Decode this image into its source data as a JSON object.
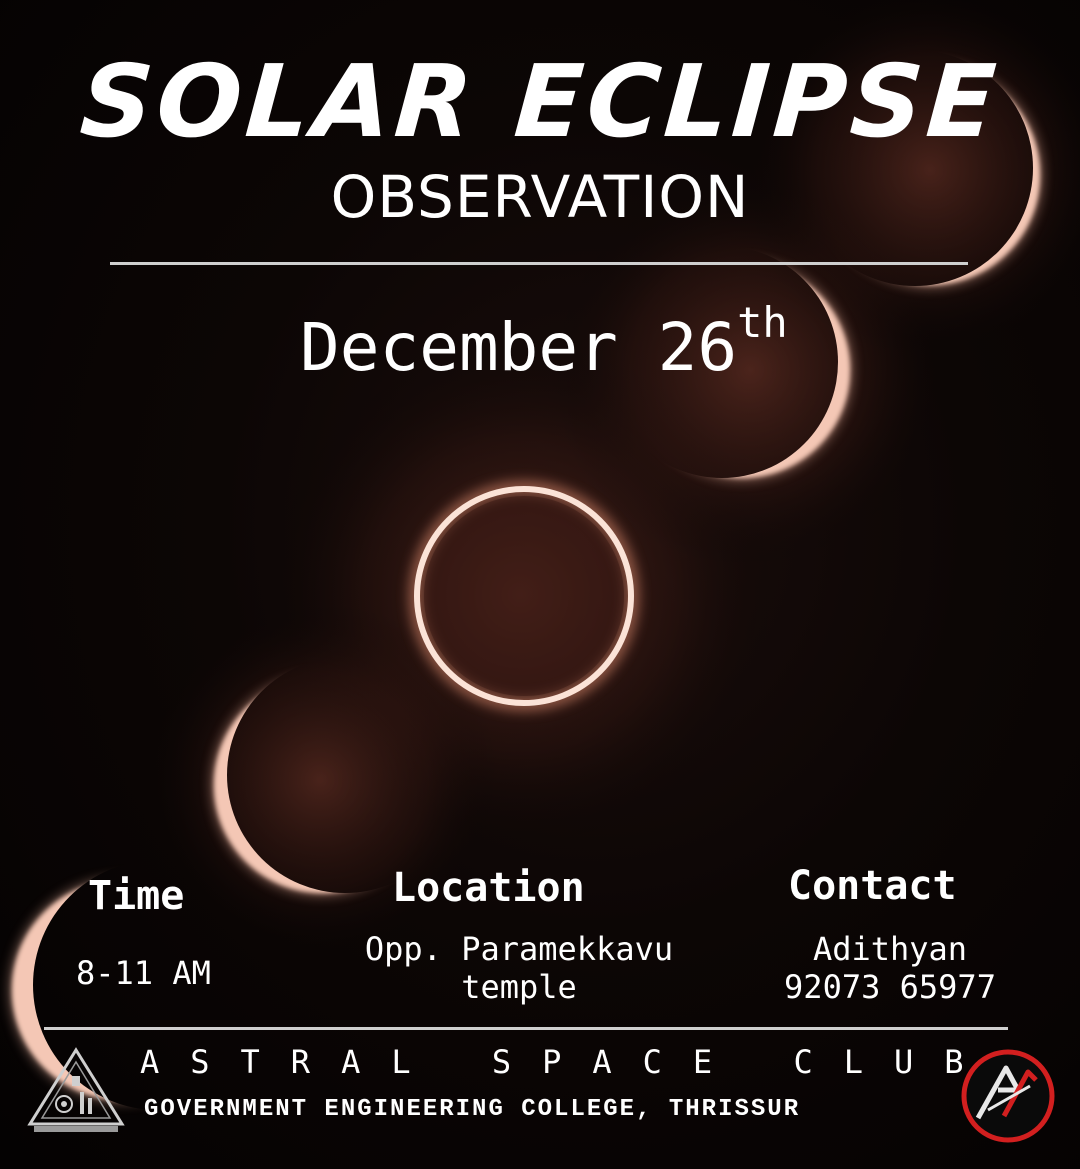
{
  "title": "SOLAR ECLIPSE",
  "subtitle": "OBSERVATION",
  "date": {
    "main": "December 26",
    "suffix": "th"
  },
  "details": {
    "time": {
      "label": "Time",
      "value": "8-11 AM"
    },
    "location": {
      "label": "Location",
      "line1": "Opp. Paramekkavu",
      "line2": "temple"
    },
    "contact": {
      "label": "Contact",
      "name": "Adithyan",
      "phone": "92073 65977"
    }
  },
  "footer": {
    "club": "ASTRAL SPACE CLUB",
    "college": "GOVERNMENT ENGINEERING COLLEGE, THRISSUR"
  },
  "icons": {
    "left_logo": "college-emblem-icon",
    "right_logo": "astral-club-logo-icon"
  },
  "colors": {
    "background": "#0c0605",
    "corona": "#f4c7b5",
    "glow": "#b0604a",
    "text": "#ffffff",
    "divider": "#cfcfcf",
    "logo_red": "#d21f1f"
  }
}
